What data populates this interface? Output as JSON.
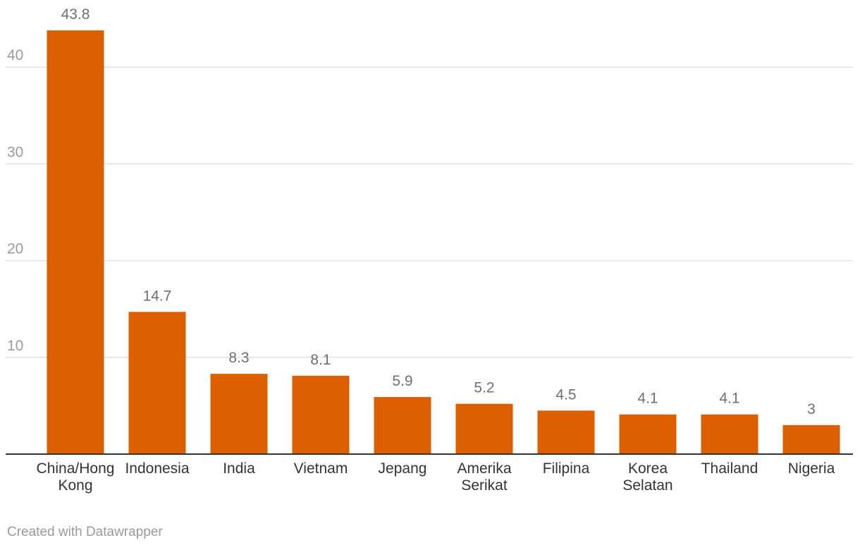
{
  "chart_data": {
    "type": "bar",
    "title": "",
    "xlabel": "",
    "ylabel": "",
    "categories": [
      "China/Hong Kong",
      "Indonesia",
      "India",
      "Vietnam",
      "Jepang",
      "Amerika Serikat",
      "Filipina",
      "Korea Selatan",
      "Thailand",
      "Nigeria"
    ],
    "category_lines": [
      [
        "China/Hong",
        "Kong"
      ],
      [
        "Indonesia"
      ],
      [
        "India"
      ],
      [
        "Vietnam"
      ],
      [
        "Jepang"
      ],
      [
        "Amerika",
        "Serikat"
      ],
      [
        "Filipina"
      ],
      [
        "Korea",
        "Selatan"
      ],
      [
        "Thailand"
      ],
      [
        "Nigeria"
      ]
    ],
    "values": [
      43.8,
      14.7,
      8.3,
      8.1,
      5.9,
      5.2,
      4.5,
      4.1,
      4.1,
      3
    ],
    "value_labels": [
      "43.8",
      "14.7",
      "8.3",
      "8.1",
      "5.9",
      "5.2",
      "4.5",
      "4.1",
      "4.1",
      "3"
    ],
    "ylim": [
      0,
      46
    ],
    "yticks": [
      10,
      20,
      30,
      40
    ],
    "grid": true,
    "bar_color": "#dd6000",
    "legend": "none"
  },
  "footer": {
    "credit": "Created with Datawrapper"
  }
}
